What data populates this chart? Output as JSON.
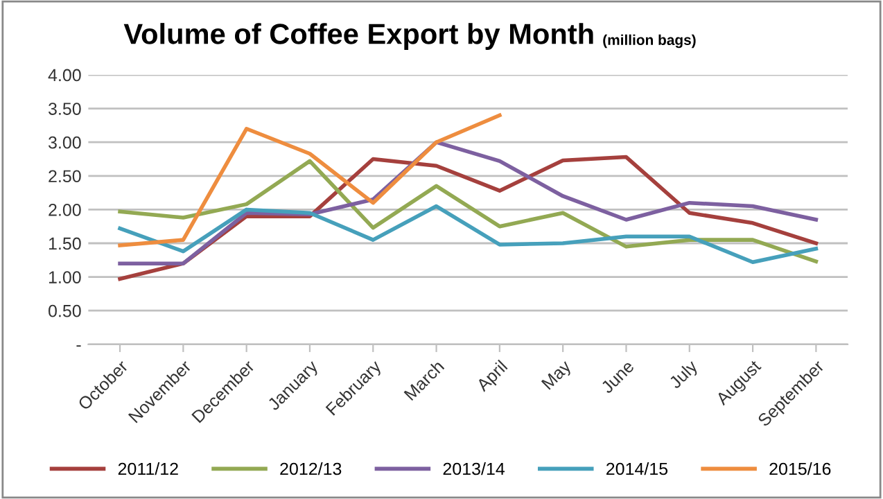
{
  "chart_data": {
    "type": "line",
    "title": "Volume of Coffee Export by Month",
    "subtitle": "(million bags)",
    "categories": [
      "October",
      "November",
      "December",
      "January",
      "February",
      "March",
      "April",
      "May",
      "June",
      "July",
      "August",
      "September"
    ],
    "series": [
      {
        "name": "2011/12",
        "color": "#a5403d",
        "values": [
          0.97,
          1.2,
          1.9,
          1.9,
          2.75,
          2.65,
          2.28,
          2.73,
          2.78,
          1.95,
          1.8,
          1.5
        ]
      },
      {
        "name": "2012/13",
        "color": "#93a953",
        "values": [
          1.97,
          1.88,
          2.08,
          2.72,
          1.73,
          2.35,
          1.75,
          1.95,
          1.45,
          1.55,
          1.55,
          1.23
        ]
      },
      {
        "name": "2013/14",
        "color": "#7d60a0",
        "values": [
          1.2,
          1.2,
          1.95,
          1.93,
          2.15,
          3.0,
          2.72,
          2.2,
          1.85,
          2.1,
          2.05,
          1.85
        ]
      },
      {
        "name": "2014/15",
        "color": "#46a0bb",
        "values": [
          1.72,
          1.38,
          2.0,
          1.95,
          1.55,
          2.05,
          1.48,
          1.5,
          1.6,
          1.6,
          1.22,
          1.42
        ]
      },
      {
        "name": "2015/16",
        "color": "#ee8d3f",
        "values": [
          1.47,
          1.55,
          3.2,
          2.83,
          2.1,
          3.0,
          3.4,
          null,
          null,
          null,
          null,
          null
        ]
      }
    ],
    "ylim": [
      0,
      4
    ],
    "yticks": [
      {
        "value": 0,
        "label": "-"
      },
      {
        "value": 0.5,
        "label": "0.50"
      },
      {
        "value": 1,
        "label": "1.00"
      },
      {
        "value": 1.5,
        "label": "1.50"
      },
      {
        "value": 2,
        "label": "2.00"
      },
      {
        "value": 2.5,
        "label": "2.50"
      },
      {
        "value": 3,
        "label": "3.00"
      },
      {
        "value": 3.5,
        "label": "3.50"
      },
      {
        "value": 4,
        "label": "4.00"
      }
    ],
    "grid": "y",
    "legend": "bottom",
    "marker": "none",
    "line_style": "solid"
  }
}
